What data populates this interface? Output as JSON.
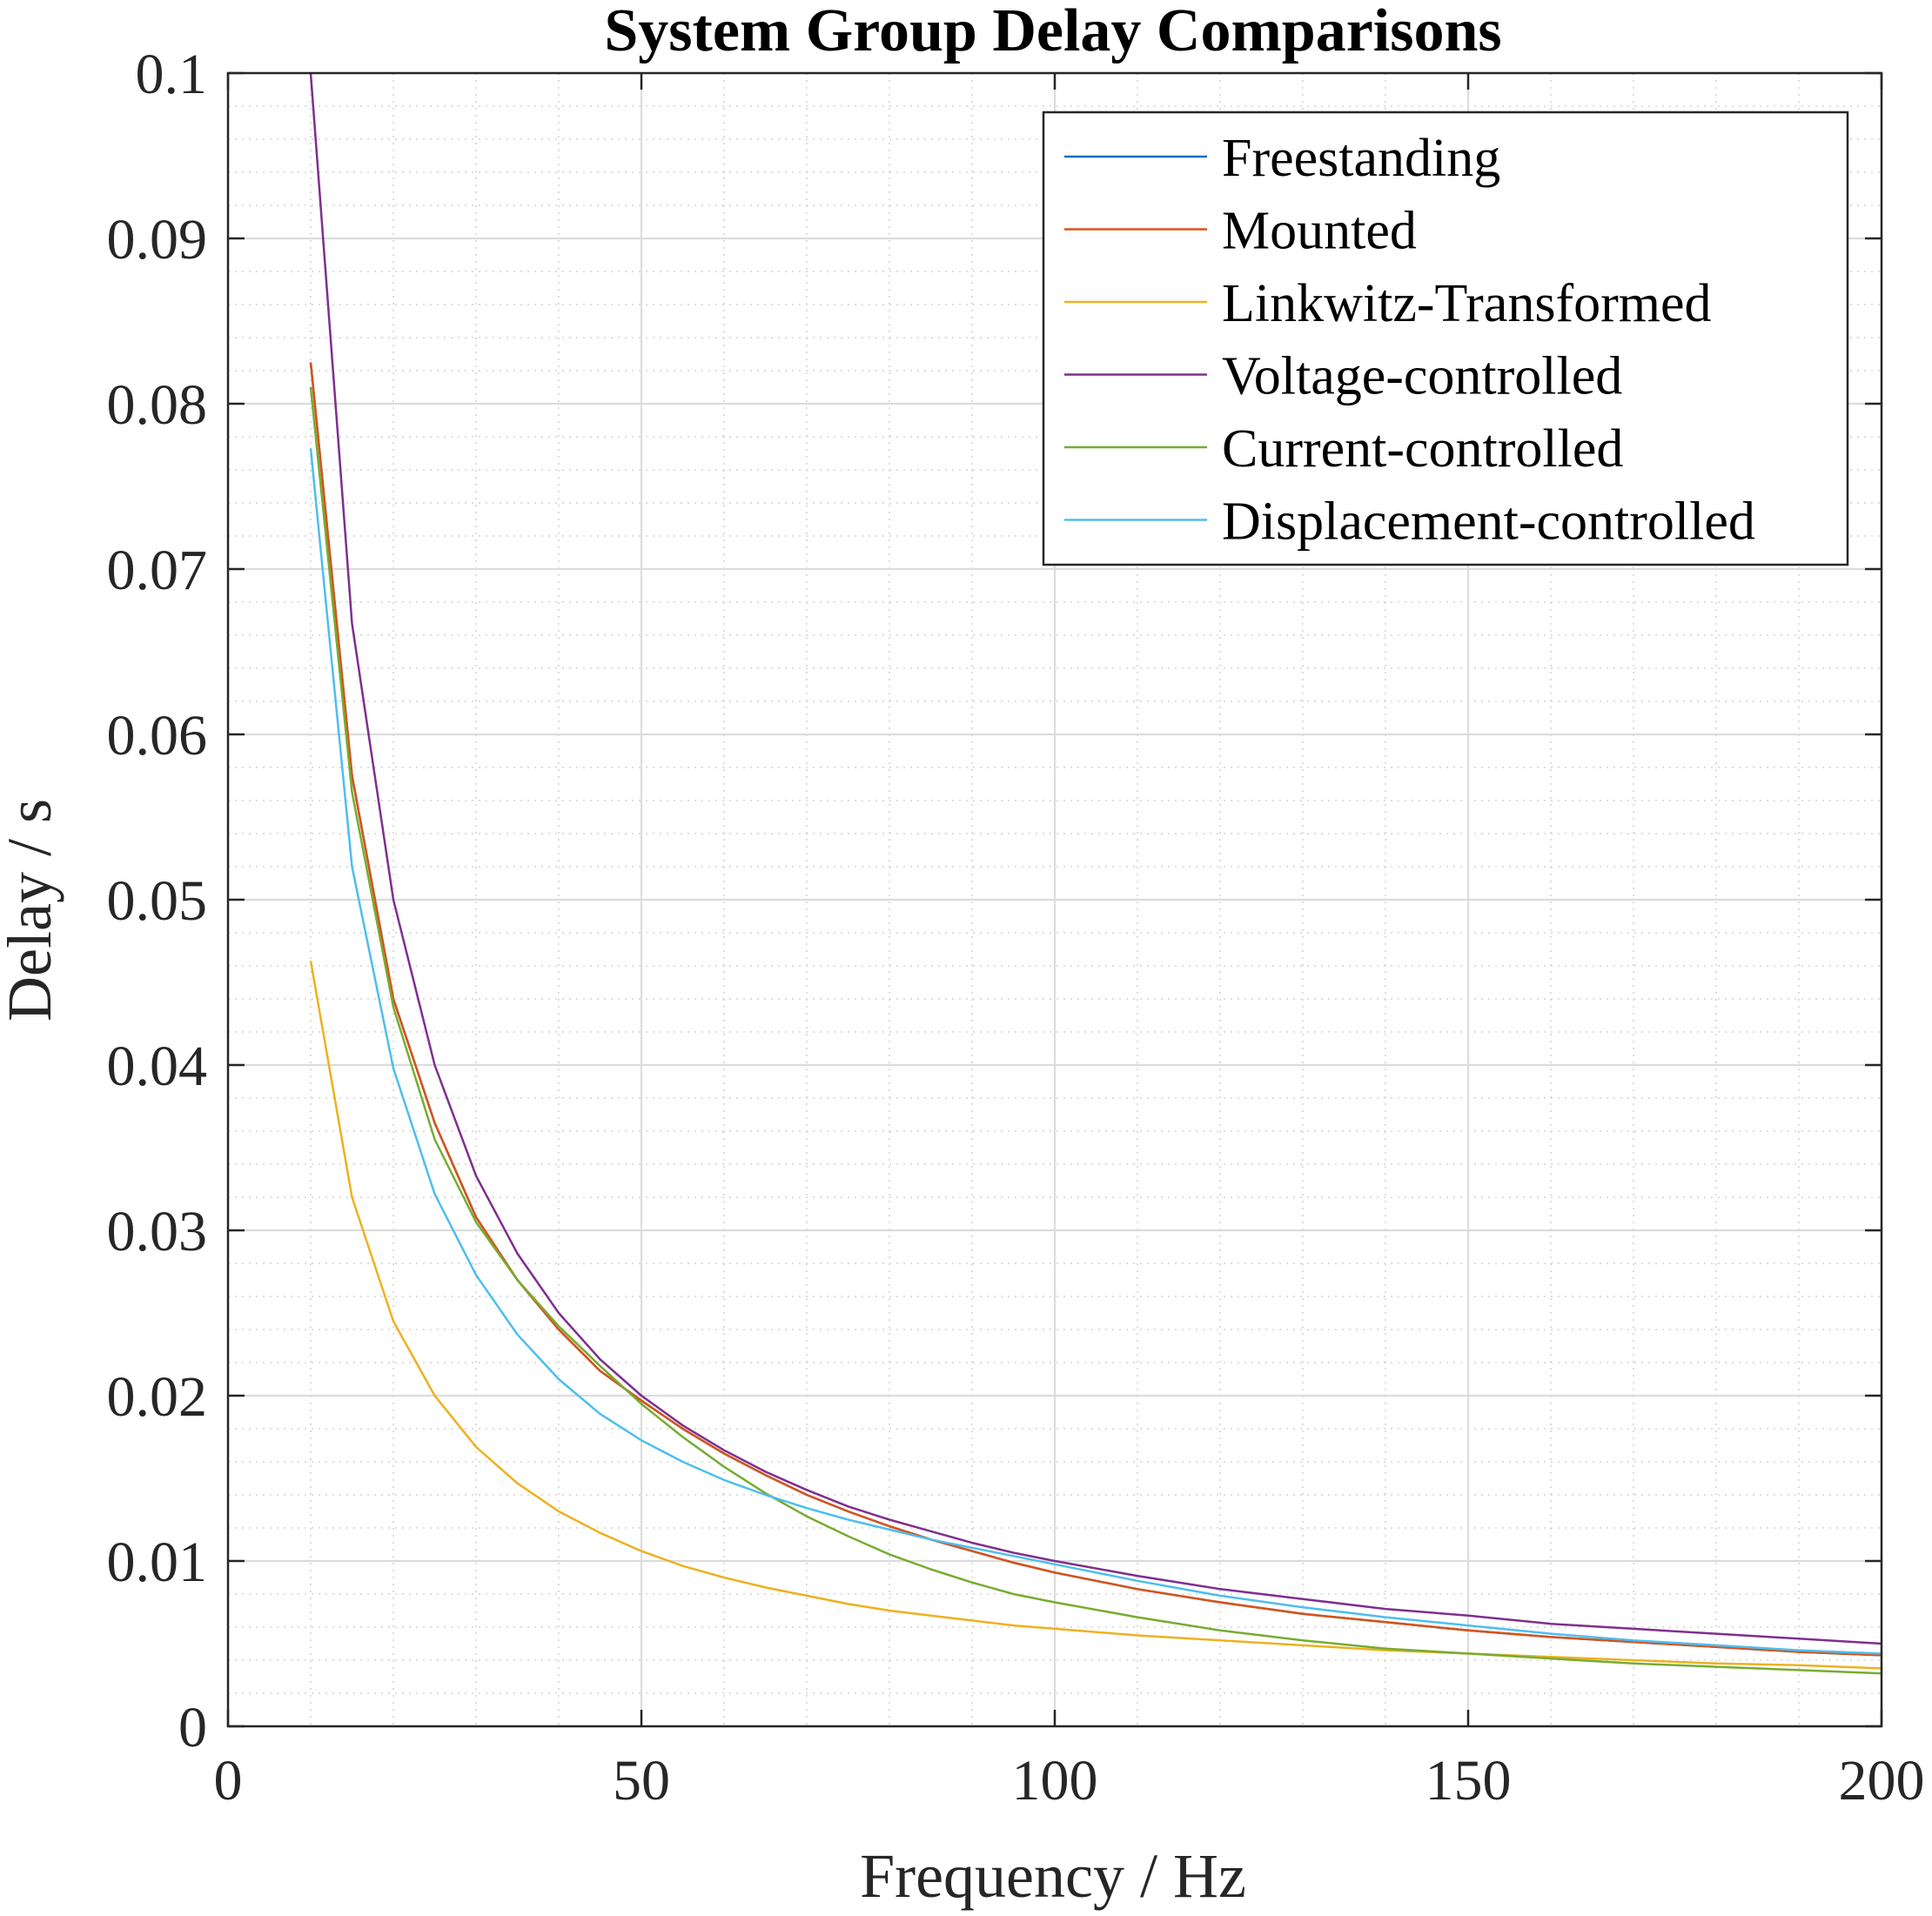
{
  "chart_data": {
    "type": "line",
    "title": "System Group Delay Comparisons",
    "xlabel": "Frequency / Hz",
    "ylabel": "Delay / s",
    "xlim": [
      0,
      200
    ],
    "ylim": [
      0,
      0.1
    ],
    "xticks": [
      0,
      50,
      100,
      150,
      200
    ],
    "xtick_labels": [
      "0",
      "50",
      "100",
      "150",
      "200"
    ],
    "yticks": [
      0,
      0.01,
      0.02,
      0.03,
      0.04,
      0.05,
      0.06,
      0.07,
      0.08,
      0.09,
      0.1
    ],
    "ytick_labels": [
      "0",
      "0.01",
      "0.02",
      "0.03",
      "0.04",
      "0.05",
      "0.06",
      "0.07",
      "0.08",
      "0.09",
      "0.1"
    ],
    "grid": true,
    "minor_grid": true,
    "legend_position": "top-right",
    "x": [
      10,
      15,
      20,
      25,
      30,
      35,
      40,
      45,
      50,
      55,
      60,
      65,
      70,
      75,
      80,
      85,
      90,
      95,
      100,
      110,
      120,
      130,
      140,
      150,
      160,
      170,
      180,
      190,
      200
    ],
    "series": [
      {
        "name": "Freestanding",
        "color": "#0072BD",
        "values": [
          0.0825,
          0.0575,
          0.044,
          0.0365,
          0.0308,
          0.027,
          0.024,
          0.0215,
          0.0197,
          0.018,
          0.0165,
          0.0152,
          0.014,
          0.013,
          0.0121,
          0.0113,
          0.0106,
          0.0099,
          0.0093,
          0.0083,
          0.0075,
          0.0068,
          0.0063,
          0.0058,
          0.0054,
          0.0051,
          0.0048,
          0.0045,
          0.0043
        ]
      },
      {
        "name": "Mounted",
        "color": "#D95319",
        "values": [
          0.0825,
          0.0575,
          0.044,
          0.0365,
          0.0308,
          0.027,
          0.024,
          0.0215,
          0.0197,
          0.018,
          0.0165,
          0.0152,
          0.014,
          0.013,
          0.0121,
          0.0113,
          0.0106,
          0.0099,
          0.0093,
          0.0083,
          0.0075,
          0.0068,
          0.0063,
          0.0058,
          0.0054,
          0.0051,
          0.0048,
          0.0045,
          0.0043
        ]
      },
      {
        "name": "Linkwitz-Transformed",
        "color": "#EDB120",
        "values": [
          0.0463,
          0.032,
          0.0245,
          0.02,
          0.0169,
          0.0147,
          0.013,
          0.0117,
          0.0106,
          0.0097,
          0.009,
          0.0084,
          0.0079,
          0.0074,
          0.007,
          0.0067,
          0.0064,
          0.0061,
          0.0059,
          0.0055,
          0.0052,
          0.0049,
          0.0046,
          0.0044,
          0.0042,
          0.004,
          0.0038,
          0.0037,
          0.0035
        ]
      },
      {
        "name": "Voltage-controlled",
        "color": "#7E2F8E",
        "values": [
          0.1,
          0.0667,
          0.05,
          0.04,
          0.0333,
          0.0286,
          0.025,
          0.0222,
          0.02,
          0.0182,
          0.0167,
          0.0154,
          0.0143,
          0.0133,
          0.0125,
          0.0118,
          0.0111,
          0.0105,
          0.01,
          0.0091,
          0.0083,
          0.0077,
          0.0071,
          0.0067,
          0.0062,
          0.0059,
          0.0056,
          0.0053,
          0.005
        ]
      },
      {
        "name": "Current-controlled",
        "color": "#77AC30",
        "values": [
          0.081,
          0.0565,
          0.0435,
          0.0355,
          0.0305,
          0.027,
          0.0242,
          0.0218,
          0.0195,
          0.0175,
          0.0157,
          0.0141,
          0.0127,
          0.0115,
          0.0104,
          0.0095,
          0.0087,
          0.008,
          0.0075,
          0.0066,
          0.0058,
          0.0052,
          0.0047,
          0.0044,
          0.0041,
          0.0038,
          0.0036,
          0.0034,
          0.0032
        ]
      },
      {
        "name": "Displacement-controlled",
        "color": "#4DBEEE",
        "values": [
          0.0773,
          0.052,
          0.0398,
          0.0322,
          0.0273,
          0.0237,
          0.021,
          0.0189,
          0.0173,
          0.016,
          0.0149,
          0.014,
          0.0132,
          0.0125,
          0.0119,
          0.0113,
          0.0108,
          0.0103,
          0.0098,
          0.0088,
          0.0079,
          0.0072,
          0.0066,
          0.0061,
          0.0056,
          0.0052,
          0.0049,
          0.0046,
          0.0044
        ]
      }
    ]
  }
}
